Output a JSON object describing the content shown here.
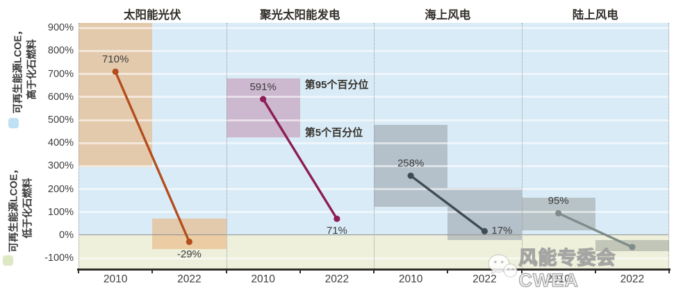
{
  "watermark": {
    "text": "风能专委会CWEA"
  },
  "legend": {
    "above": {
      "line1": "可再生能源LCOE，",
      "line2": "高于化石燃料",
      "marker_color": "#bfe1f3"
    },
    "below": {
      "line1": "可再生能源LCOE，",
      "line2": "低于化石燃料",
      "marker_color": "#dde9c5"
    }
  },
  "chart_data": {
    "type": "slope-range",
    "description": "Renewable LCOE relative to fossil fuels, 2010 vs 2022, with 5th-95th percentile bands",
    "x_years": [
      "2010",
      "2022"
    ],
    "y_axis": {
      "ticks": [
        {
          "label": "900%",
          "value": 900
        },
        {
          "label": "800%",
          "value": 800
        },
        {
          "label": "700%",
          "value": 700
        },
        {
          "label": "600%",
          "value": 600
        },
        {
          "label": "500%",
          "value": 500
        },
        {
          "label": "400%",
          "value": 400
        },
        {
          "label": "300%",
          "value": 300
        },
        {
          "label": "200%",
          "value": 200
        },
        {
          "label": "100%",
          "value": 100
        },
        {
          "label": "0%",
          "value": 0
        },
        {
          "label": "-100%",
          "value": -100
        }
      ],
      "max": 922,
      "min": -145
    },
    "zero_line_value": 0,
    "colors": {
      "bg_above_zero": "#d9ebf6",
      "bg_below_zero": "#eef0dc",
      "axis_line": "#2f2c2a",
      "zero_line": "#8f8f8f",
      "gridline": "rgba(255,255,255,0.55)"
    },
    "panels": [
      {
        "title": "太阳能光伏",
        "line_color": "#b34e1c",
        "band_color": "rgba(235,180,125,0.6)",
        "points": [
          {
            "year": "2010",
            "value": 710,
            "label": "710%",
            "label_pos": "above"
          },
          {
            "year": "2022",
            "value": -29,
            "label": "-29%",
            "label_pos": "below"
          }
        ],
        "bands": [
          {
            "low": 295,
            "high": 930
          },
          {
            "low": -60,
            "high": 71
          }
        ]
      },
      {
        "title": "聚光太阳能发电",
        "line_color": "#8c1d55",
        "band_color": "rgba(195,150,182,0.6)",
        "points": [
          {
            "year": "2010",
            "value": 591,
            "label": "591%",
            "label_pos": "above"
          },
          {
            "year": "2022",
            "value": 71,
            "label": "71%",
            "label_pos": "below"
          }
        ],
        "bands": [
          {
            "low": 425,
            "high": 680
          },
          null
        ]
      },
      {
        "title": "海上风电",
        "line_color": "#3e4c55",
        "band_color": "rgba(157,165,174,0.6)",
        "points": [
          {
            "year": "2010",
            "value": 258,
            "label": "258%",
            "label_pos": "above"
          },
          {
            "year": "2022",
            "value": 17,
            "label": "17%",
            "label_pos": "right"
          }
        ],
        "bands": [
          {
            "low": 123,
            "high": 480
          },
          {
            "low": -20,
            "high": 205
          }
        ]
      },
      {
        "title": "陆上风电",
        "line_color": "#7f8c89",
        "band_color": "rgba(149,155,150,0.5)",
        "points": [
          {
            "year": "2010",
            "value": 95,
            "label": "95%",
            "label_pos": "above"
          },
          {
            "year": "2022",
            "value": -52,
            "label": "",
            "label_pos": "none"
          }
        ],
        "bands": [
          {
            "low": 20,
            "high": 163
          },
          {
            "low": -69,
            "high": -21
          }
        ]
      }
    ],
    "annotations": [
      {
        "text": "第95个百分位",
        "value": 660,
        "panel": 1
      },
      {
        "text": "第5个百分位",
        "value": 452,
        "panel": 1
      }
    ]
  }
}
